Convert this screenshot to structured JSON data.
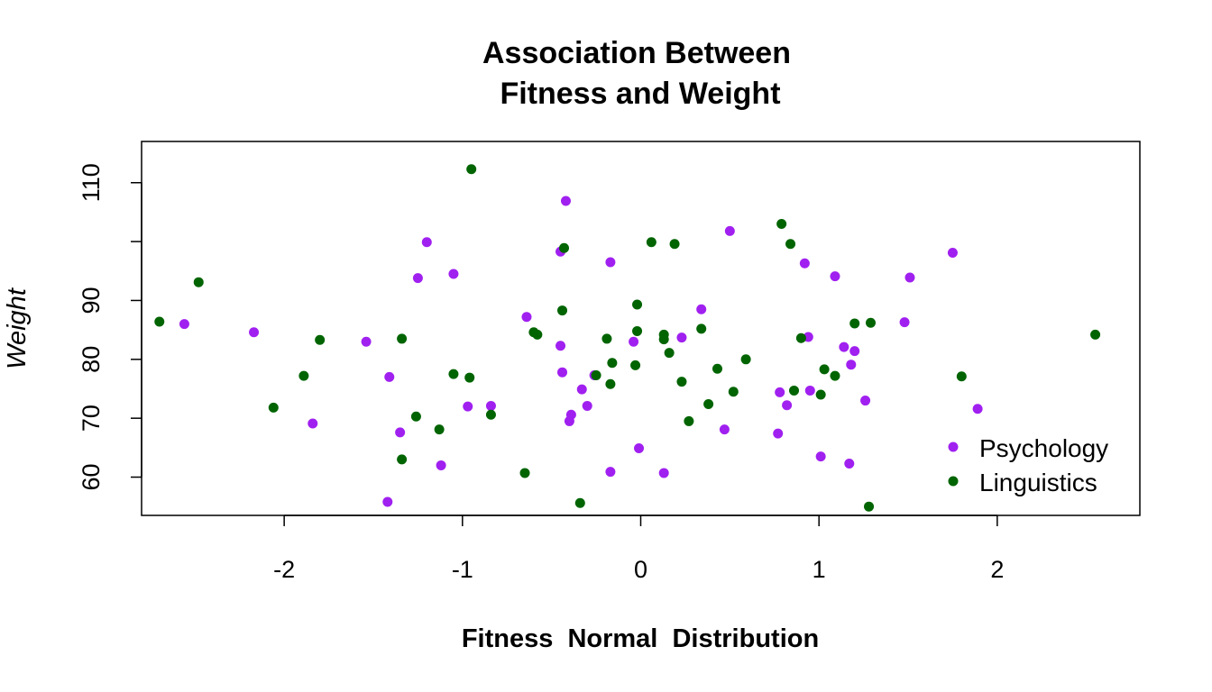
{
  "chart_data": {
    "type": "scatter",
    "title_lines": [
      "Association Between",
      "Fitness and Weight"
    ],
    "xlabel": "Fitness  Normal  Distribution",
    "ylabel": "Weight",
    "xlim": [
      -2.8,
      2.8
    ],
    "ylim": [
      53.5,
      117
    ],
    "xticks": [
      -2,
      -1,
      0,
      1,
      2
    ],
    "xtick_labels": [
      "-2",
      "-1",
      "0",
      "1",
      "2"
    ],
    "yticks": [
      60,
      70,
      80,
      90,
      100,
      110
    ],
    "ytick_labels": [
      "60",
      "70",
      "80",
      "90",
      "",
      "110"
    ],
    "grid": false,
    "legend_position": "bottom-right",
    "series": [
      {
        "name": "Psychology",
        "color": "#A020F0",
        "x": [
          -2.56,
          -2.17,
          -1.54,
          -1.41,
          -1.42,
          -1.35,
          -1.84,
          -1.25,
          -1.2,
          -1.05,
          -1.12,
          -0.97,
          -0.84,
          -0.39,
          -0.64,
          -0.45,
          -0.45,
          -0.44,
          -0.42,
          -0.33,
          -0.3,
          -0.4,
          -0.26,
          -0.17,
          -0.17,
          -0.04,
          -0.01,
          0.13,
          0.23,
          0.34,
          0.47,
          0.5,
          0.78,
          0.82,
          0.77,
          0.92,
          0.94,
          0.95,
          1.01,
          1.09,
          1.14,
          1.17,
          1.18,
          1.2,
          1.26,
          1.48,
          1.51,
          1.75,
          1.89
        ],
        "y": [
          86,
          84.6,
          83,
          77,
          55.8,
          67.6,
          69.1,
          93.8,
          99.9,
          94.5,
          62,
          72,
          72.1,
          70.6,
          87.2,
          98.3,
          82.3,
          77.8,
          106.9,
          74.9,
          72.1,
          69.5,
          77.3,
          96.5,
          60.9,
          83,
          64.9,
          60.7,
          83.7,
          88.5,
          68.1,
          101.8,
          74.4,
          72.2,
          67.4,
          96.3,
          83.8,
          74.7,
          63.5,
          94.1,
          82.1,
          62.3,
          79.1,
          81.4,
          73,
          86.3,
          93.9,
          98.1,
          71.6
        ]
      },
      {
        "name": "Linguistics",
        "color": "#006400",
        "x": [
          -2.7,
          -2.48,
          -2.06,
          -1.89,
          -1.8,
          -1.34,
          -1.34,
          -1.26,
          -1.13,
          -1.05,
          -0.96,
          -0.95,
          -0.84,
          -0.65,
          -0.58,
          -0.6,
          -0.44,
          -0.43,
          -0.34,
          -0.25,
          -0.19,
          -0.16,
          -0.17,
          -0.02,
          -0.03,
          -0.02,
          0.06,
          0.13,
          0.13,
          0.16,
          0.19,
          0.23,
          0.27,
          0.34,
          0.38,
          0.43,
          0.52,
          0.59,
          0.79,
          0.84,
          0.86,
          0.9,
          1.01,
          1.03,
          1.09,
          1.2,
          1.29,
          1.28,
          1.8,
          2.55
        ],
        "y": [
          86.4,
          93.1,
          71.8,
          77.2,
          83.3,
          83.5,
          63,
          70.3,
          68.1,
          77.5,
          76.9,
          112.3,
          70.6,
          60.7,
          84.2,
          84.6,
          88.3,
          98.9,
          55.6,
          77.3,
          83.5,
          79.4,
          75.8,
          89.3,
          79,
          84.8,
          99.9,
          83.4,
          84.2,
          81.1,
          99.6,
          76.2,
          69.5,
          85.2,
          72.4,
          78.4,
          74.5,
          80,
          103,
          99.6,
          74.7,
          83.6,
          74,
          78.3,
          77.2,
          86.1,
          86.2,
          55,
          77.1,
          84.2
        ]
      }
    ]
  }
}
